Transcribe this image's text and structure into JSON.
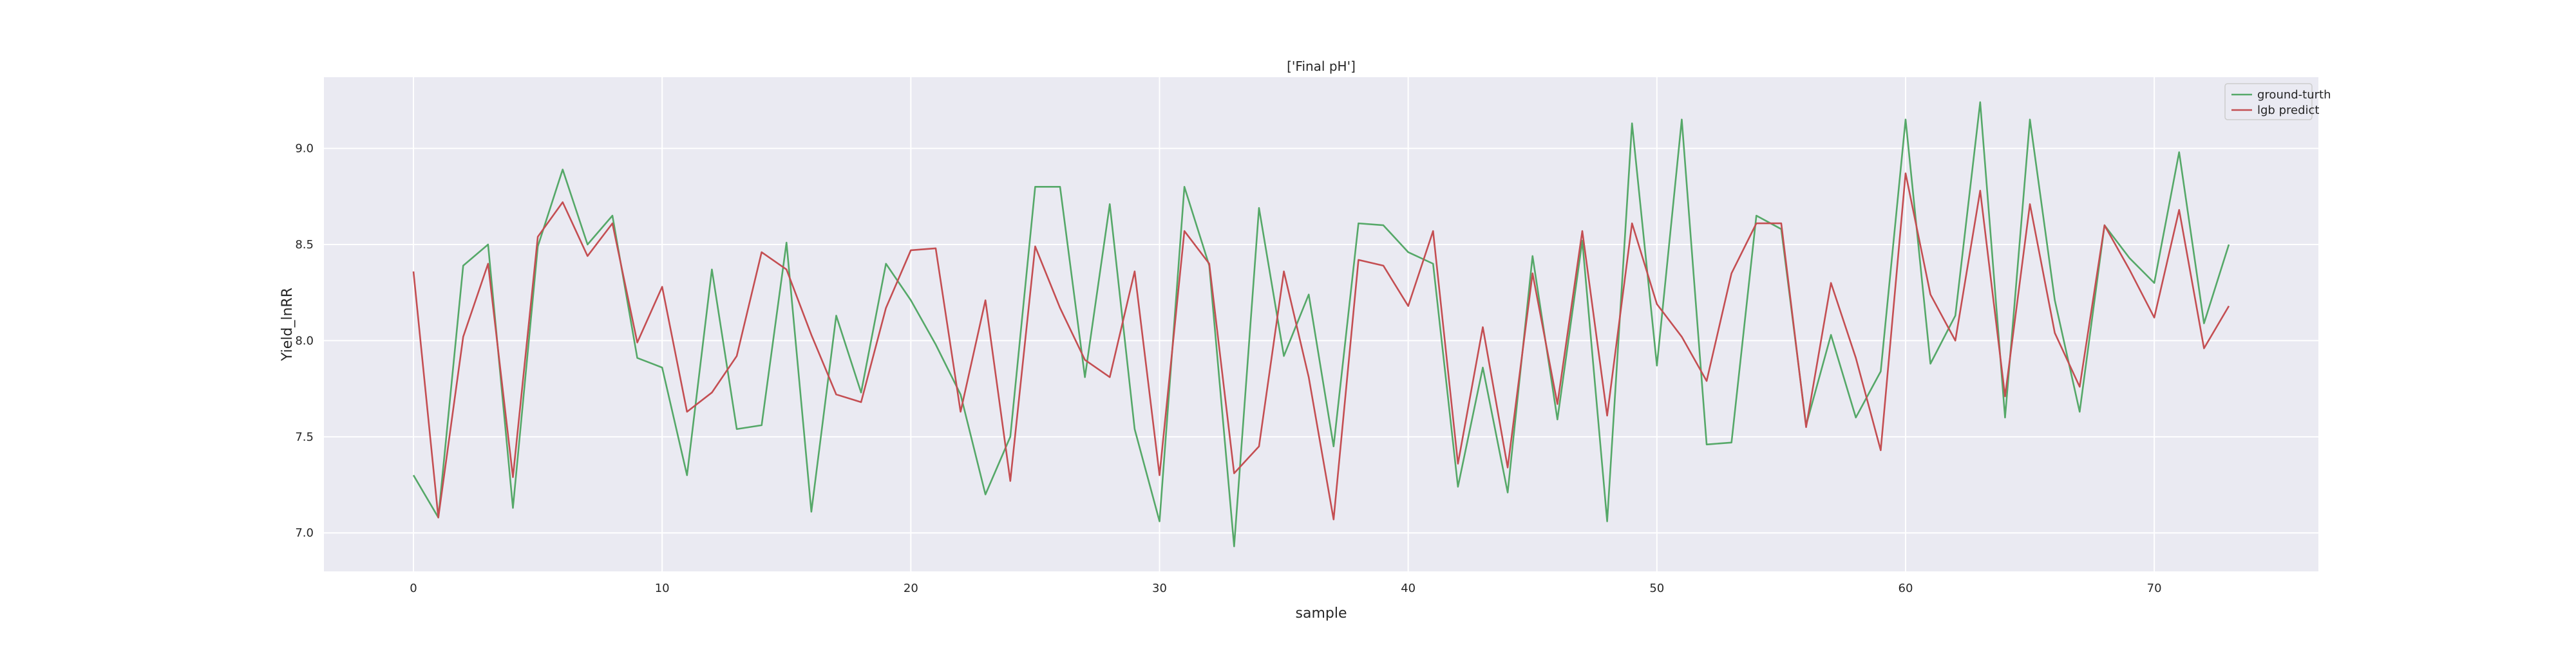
{
  "chart_data": {
    "type": "line",
    "title": "['Final pH']",
    "xlabel": "sample",
    "ylabel": "Yield_lnRR",
    "xlim": [
      -3.6,
      76.6
    ],
    "ylim": [
      6.8,
      9.37
    ],
    "xticks": [
      0,
      10,
      20,
      30,
      40,
      50,
      60,
      70
    ],
    "yticks": [
      7.0,
      7.5,
      8.0,
      8.5,
      9.0
    ],
    "grid": true,
    "legend_position": "top-right",
    "x": [
      0,
      1,
      2,
      3,
      4,
      5,
      6,
      7,
      8,
      9,
      10,
      11,
      12,
      13,
      14,
      15,
      16,
      17,
      18,
      19,
      20,
      21,
      22,
      23,
      24,
      25,
      26,
      27,
      28,
      29,
      30,
      31,
      32,
      33,
      34,
      35,
      36,
      37,
      38,
      39,
      40,
      41,
      42,
      43,
      44,
      45,
      46,
      47,
      48,
      49,
      50,
      51,
      52,
      53,
      54,
      55,
      56,
      57,
      58,
      59,
      60,
      61,
      62,
      63,
      64,
      65,
      66,
      67,
      68,
      69,
      70,
      71,
      72,
      73
    ],
    "series": [
      {
        "name": "ground-turth",
        "color": "#55a868",
        "values": [
          7.3,
          7.08,
          8.39,
          8.5,
          7.13,
          8.49,
          8.89,
          8.5,
          8.65,
          7.91,
          7.86,
          7.3,
          8.37,
          7.54,
          7.56,
          8.51,
          7.11,
          8.13,
          7.73,
          8.4,
          8.21,
          7.98,
          7.72,
          7.2,
          7.5,
          8.8,
          8.8,
          7.81,
          8.71,
          7.54,
          7.06,
          8.8,
          8.39,
          6.93,
          8.69,
          7.92,
          8.24,
          7.45,
          8.61,
          8.6,
          8.46,
          8.4,
          7.24,
          7.86,
          7.21,
          8.44,
          7.59,
          8.52,
          7.06,
          9.13,
          7.87,
          9.15,
          7.46,
          7.47,
          8.65,
          8.58,
          7.56,
          8.03,
          7.6,
          7.84,
          9.15,
          7.88,
          8.13,
          9.24,
          7.6,
          9.15,
          8.21,
          7.63,
          8.6,
          8.43,
          8.3,
          8.98,
          8.09,
          8.5
        ]
      },
      {
        "name": "lgb predict",
        "color": "#c44e52",
        "values": [
          8.36,
          7.08,
          8.02,
          8.4,
          7.29,
          8.54,
          8.72,
          8.44,
          8.61,
          7.99,
          8.28,
          7.63,
          7.73,
          7.92,
          8.46,
          8.37,
          8.03,
          7.72,
          7.68,
          8.17,
          8.47,
          8.48,
          7.63,
          8.21,
          7.27,
          8.49,
          8.17,
          7.9,
          7.81,
          8.36,
          7.3,
          8.57,
          8.4,
          7.31,
          7.45,
          8.36,
          7.81,
          7.07,
          8.42,
          8.39,
          8.18,
          8.57,
          7.36,
          8.07,
          7.34,
          8.35,
          7.67,
          8.57,
          7.61,
          8.61,
          8.19,
          8.02,
          7.79,
          8.35,
          8.61,
          8.61,
          7.55,
          8.3,
          7.91,
          7.43,
          8.87,
          8.24,
          8.0,
          8.78,
          7.71,
          8.71,
          8.04,
          7.76,
          8.6,
          8.37,
          8.12,
          8.68,
          7.96,
          8.18
        ]
      }
    ]
  }
}
